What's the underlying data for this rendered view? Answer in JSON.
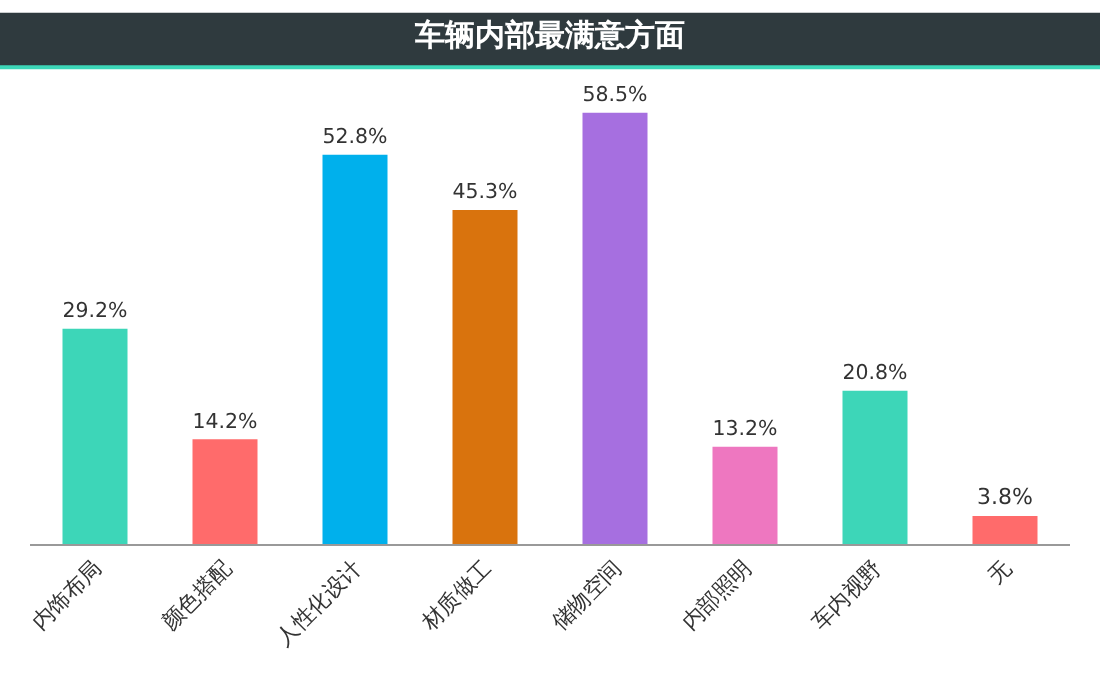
{
  "chart_data": {
    "type": "bar",
    "title": "车辆内部最满意方面",
    "categories": [
      "内饰布局",
      "颜色搭配",
      "人性化设计",
      "材质做工",
      "储物空间",
      "内部照明",
      "车内视野",
      "无"
    ],
    "values": [
      29.2,
      14.2,
      52.8,
      45.3,
      58.5,
      13.2,
      20.8,
      3.8
    ],
    "colors": [
      "#3dd6b8",
      "#ff6b6b",
      "#00b0ec",
      "#d9730d",
      "#a66fe0",
      "#ee77c0",
      "#3dd6b8",
      "#ff6b6b"
    ],
    "value_labels": [
      "29.2%",
      "14.2%",
      "52.8%",
      "45.3%",
      "58.5%",
      "13.2%",
      "20.8%",
      "3.8%"
    ]
  }
}
